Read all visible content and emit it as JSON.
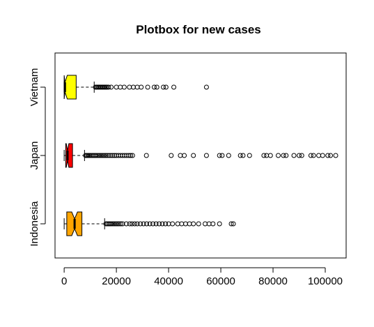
{
  "chart_data": {
    "type": "boxplot",
    "orientation": "horizontal",
    "title": "Plotbox for new cases",
    "xlabel": "",
    "ylabel": "",
    "notched": true,
    "grid": false,
    "legend": "none",
    "xlim": [
      -3500,
      108000
    ],
    "x_ticks": [
      0,
      20000,
      40000,
      60000,
      80000,
      100000
    ],
    "x_tick_labels": [
      "0",
      "20000",
      "40000",
      "60000",
      "80000",
      "100000"
    ],
    "categories": [
      "Indonesia",
      "Japan",
      "Vietnam"
    ],
    "boxes": [
      {
        "label": "Indonesia",
        "color": "#FFA500",
        "min": 0,
        "q1": 1000,
        "median": 4000,
        "q3": 6800,
        "max": 15500,
        "notch": [
          2900,
          5100
        ],
        "outliers": [
          16000,
          16500,
          17000,
          17500,
          18000,
          18600,
          19200,
          19800,
          20400,
          21000,
          21700,
          22400,
          23800,
          25100,
          26000,
          27000,
          28000,
          29200,
          30400,
          31600,
          32800,
          34000,
          35200,
          36400,
          37600,
          38800,
          40000,
          41500,
          43500,
          45000,
          46500,
          48000,
          49500,
          51500,
          54000,
          55500,
          57000,
          59500,
          64000,
          64800
        ]
      },
      {
        "label": "Japan",
        "color": "#FF0000",
        "min": 0,
        "q1": 600,
        "median": 1300,
        "q3": 3200,
        "max": 7800,
        "notch": [
          800,
          1800
        ],
        "outliers": [
          8200,
          8600,
          9000,
          9400,
          9800,
          10300,
          10800,
          11300,
          11800,
          12300,
          12900,
          13500,
          14100,
          14700,
          15300,
          15900,
          16500,
          17200,
          17900,
          18600,
          19300,
          20000,
          20800,
          21600,
          22400,
          23200,
          24000,
          24800,
          25500,
          26200,
          31500,
          41000,
          44500,
          46000,
          49500,
          54500,
          59500,
          60500,
          63000,
          67500,
          68500,
          71000,
          76500,
          77500,
          79000,
          82000,
          84000,
          85000,
          88000,
          90000,
          91000,
          94500,
          95500,
          97500,
          99000,
          101000,
          102000,
          104000
        ]
      },
      {
        "label": "Vietnam",
        "color": "#FFFF00",
        "min": 0,
        "q1": 0,
        "median": 300,
        "q3": 4600,
        "max": 11500,
        "notch": [
          0,
          1200
        ],
        "outliers": [
          12000,
          12400,
          12800,
          13200,
          13600,
          14000,
          14400,
          14800,
          15200,
          15600,
          16000,
          16400,
          17000,
          18000,
          20000,
          21500,
          23000,
          25000,
          26500,
          28000,
          29500,
          32000,
          34500,
          35500,
          38000,
          39000,
          42000,
          54500
        ]
      }
    ]
  }
}
